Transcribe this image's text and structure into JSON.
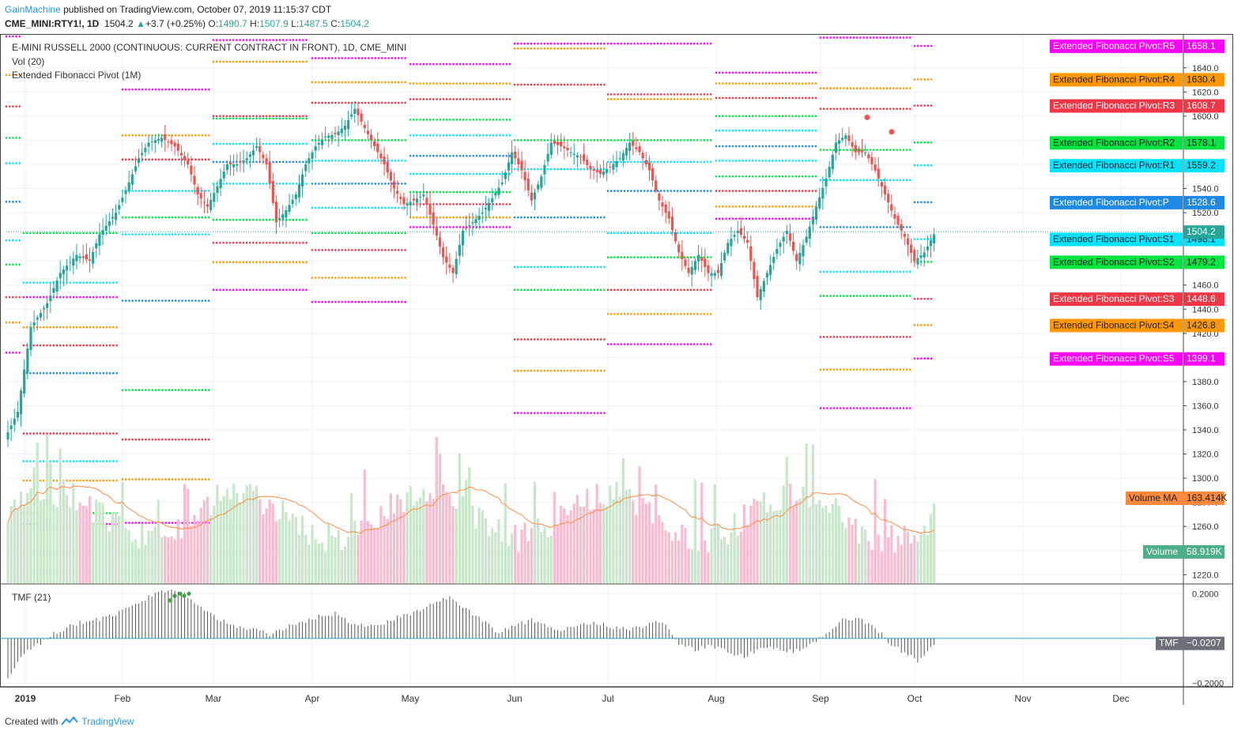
{
  "header": {
    "author": "GainMachine",
    "published": "published on TradingView.com, October 07, 2019 11:15:37 CDT",
    "symbol": "CME_MINI:RTY1!, 1D",
    "last": "1504.2",
    "change": "+3.7 (+0.25%)",
    "o_label": "O:",
    "o_val": "1490.7",
    "h_label": "H:",
    "h_val": "1507.9",
    "l_label": "L:",
    "l_val": "1487.5",
    "c_label": "C:",
    "c_val": "1504.2"
  },
  "legend": {
    "title": "E-MINI RUSSELL 2000 (CONTINUOUS: CURRENT CONTRACT IN FRONT), 1D, CME_MINI",
    "vol": "Vol (20)",
    "pivot": "Extended Fibonacci Pivot (1M)",
    "tmf": "TMF (21)"
  },
  "footer": {
    "created": "Created with",
    "brand": "TradingView"
  },
  "colors": {
    "up": "#26a69a",
    "down": "#ef5350",
    "R5": "#ff00ff",
    "R4": "#ff9800",
    "R3": "#f23645",
    "R2": "#00e640",
    "R1": "#00e5ff",
    "P": "#1e88e5",
    "S1": "#00e5ff",
    "S2": "#00e640",
    "S3": "#f23645",
    "S4": "#ff9800",
    "S5": "#ff00ff",
    "vol_up": "#c8e6c9",
    "vol_down": "#f8bbd0",
    "vol_ma": "#ff8a3d"
  },
  "chart_data": [
    {
      "type": "candlestick",
      "title": "E-MINI RUSSELL 2000 (CONTINUOUS: CURRENT CONTRACT IN FRONT), 1D, CME_MINI",
      "x_ticks": [
        "2019",
        "Feb",
        "Mar",
        "Apr",
        "May",
        "Jun",
        "Jul",
        "Aug",
        "Sep",
        "Oct",
        "Nov",
        "Dec"
      ],
      "y_ticks": [
        "1640.0",
        "1620.0",
        "1600.0",
        "1580.0",
        "1560.0",
        "1540.0",
        "1520.0",
        "1500.0",
        "1480.0",
        "1460.0",
        "1440.0",
        "1420.0",
        "1400.0",
        "1380.0",
        "1360.0",
        "1340.0",
        "1320.0",
        "1300.0",
        "1280.0",
        "1260.0",
        "1240.0",
        "1220.0"
      ],
      "ylim": [
        1213,
        1668
      ],
      "last_price": 1504.2,
      "close_path": [
        [
          0,
          1338
        ],
        [
          3,
          1355
        ],
        [
          7,
          1425
        ],
        [
          12,
          1445
        ],
        [
          16,
          1470
        ],
        [
          21,
          1485
        ],
        [
          25,
          1480
        ],
        [
          28,
          1502
        ],
        [
          33,
          1520
        ],
        [
          37,
          1545
        ],
        [
          40,
          1565
        ],
        [
          43,
          1578
        ],
        [
          47,
          1582
        ],
        [
          51,
          1575
        ],
        [
          55,
          1560
        ],
        [
          58,
          1535
        ],
        [
          61,
          1525
        ],
        [
          64,
          1542
        ],
        [
          67,
          1560
        ],
        [
          70,
          1560
        ],
        [
          73,
          1565
        ],
        [
          76,
          1575
        ],
        [
          79,
          1560
        ],
        [
          82,
          1512
        ],
        [
          85,
          1522
        ],
        [
          88,
          1535
        ],
        [
          91,
          1560
        ],
        [
          94,
          1575
        ],
        [
          97,
          1583
        ],
        [
          100,
          1585
        ],
        [
          103,
          1592
        ],
        [
          106,
          1606
        ],
        [
          109,
          1590
        ],
        [
          112,
          1575
        ],
        [
          115,
          1560
        ],
        [
          118,
          1540
        ],
        [
          121,
          1527
        ],
        [
          124,
          1530
        ],
        [
          127,
          1535
        ],
        [
          130,
          1510
        ],
        [
          133,
          1483
        ],
        [
          136,
          1470
        ],
        [
          139,
          1505
        ],
        [
          142,
          1512
        ],
        [
          145,
          1520
        ],
        [
          148,
          1532
        ],
        [
          151,
          1545
        ],
        [
          154,
          1570
        ],
        [
          157,
          1555
        ],
        [
          160,
          1530
        ],
        [
          163,
          1550
        ],
        [
          166,
          1578
        ],
        [
          169,
          1575
        ],
        [
          172,
          1570
        ],
        [
          175,
          1566
        ],
        [
          178,
          1556
        ],
        [
          181,
          1552
        ],
        [
          184,
          1558
        ],
        [
          187,
          1565
        ],
        [
          190,
          1578
        ],
        [
          193,
          1570
        ],
        [
          196,
          1555
        ],
        [
          199,
          1530
        ],
        [
          202,
          1515
        ],
        [
          205,
          1487
        ],
        [
          208,
          1470
        ],
        [
          211,
          1485
        ],
        [
          214,
          1470
        ],
        [
          217,
          1470
        ],
        [
          220,
          1495
        ],
        [
          223,
          1505
        ],
        [
          226,
          1495
        ],
        [
          229,
          1450
        ],
        [
          232,
          1470
        ],
        [
          235,
          1490
        ],
        [
          238,
          1505
        ],
        [
          241,
          1480
        ],
        [
          244,
          1500
        ],
        [
          247,
          1525
        ],
        [
          250,
          1548
        ],
        [
          253,
          1578
        ],
        [
          256,
          1584
        ],
        [
          259,
          1570
        ],
        [
          262,
          1570
        ],
        [
          265,
          1555
        ],
        [
          268,
          1535
        ],
        [
          271,
          1515
        ],
        [
          274,
          1500
        ],
        [
          277,
          1480
        ],
        [
          280,
          1487
        ],
        [
          283,
          1502
        ]
      ],
      "pivot_levels": [
        {
          "name": "R5",
          "label": "Extended Fibonacci Pivot:R5",
          "value": 1658.1
        },
        {
          "name": "R4",
          "label": "Extended Fibonacci Pivot:R4",
          "value": 1630.4
        },
        {
          "name": "R3",
          "label": "Extended Fibonacci Pivot:R3",
          "value": 1608.7
        },
        {
          "name": "R2",
          "label": "Extended Fibonacci Pivot:R2",
          "value": 1578.1
        },
        {
          "name": "R1",
          "label": "Extended Fibonacci Pivot:R1",
          "value": 1559.2
        },
        {
          "name": "P",
          "label": "Extended Fibonacci Pivot:P",
          "value": 1528.6
        },
        {
          "name": "S1",
          "label": "Extended Fibonacci Pivot:S1",
          "value": 1498.1
        },
        {
          "name": "S2",
          "label": "Extended Fibonacci Pivot:S2",
          "value": 1479.2
        },
        {
          "name": "S3",
          "label": "Extended Fibonacci Pivot:S3",
          "value": 1448.6
        },
        {
          "name": "S4",
          "label": "Extended Fibonacci Pivot:S4",
          "value": 1426.8
        },
        {
          "name": "S5",
          "label": "Extended Fibonacci Pivot:S5",
          "value": 1399.1
        }
      ],
      "monthly_pivots": [
        {
          "month": "Dec 2018",
          "R5": 1666,
          "R4": 1634,
          "R3": 1608,
          "R2": 1582,
          "R1": 1561,
          "P": 1529,
          "S1": 1497,
          "S2": 1477,
          "S3": 1450,
          "S4": 1429,
          "S5": 1404
        },
        {
          "month": "Jan",
          "R5": 1450,
          "R4": 1425,
          "R3": 1410,
          "R2": 1503,
          "R1": 1462,
          "P": 1387,
          "S1": 1314,
          "S2": 1271,
          "S3": 1337,
          "S4": 1298,
          "S5": 1262
        },
        {
          "month": "Feb",
          "R5": 1622,
          "R4": 1584,
          "R3": 1564,
          "R2": 1516,
          "R1": 1538,
          "P": 1447,
          "S1": 1502,
          "S2": 1373,
          "S3": 1332,
          "S4": 1299,
          "S5": 1263
        },
        {
          "month": "Mar",
          "R5": 1663,
          "R4": 1645,
          "R3": 1600,
          "R2": 1598,
          "R1": 1577,
          "P": 1562,
          "S1": 1544,
          "S2": 1514,
          "S3": 1495,
          "S4": 1479,
          "S5": 1456
        },
        {
          "month": "Apr",
          "R5": 1648,
          "R4": 1628,
          "R3": 1611,
          "R2": 1580,
          "R1": 1563,
          "P": 1544,
          "S1": 1524,
          "S2": 1503,
          "S3": 1489,
          "S4": 1466,
          "S5": 1446
        },
        {
          "month": "May",
          "R5": 1643,
          "R4": 1627,
          "R3": 1614,
          "R2": 1597,
          "R1": 1584,
          "P": 1567,
          "S1": 1552,
          "S2": 1537,
          "S3": 1527,
          "S4": 1516,
          "S5": 1508
        },
        {
          "month": "Jun",
          "R5": 1660,
          "R4": 1656,
          "R3": 1626,
          "R2": 1580,
          "R1": 1556,
          "P": 1516,
          "S1": 1475,
          "S2": 1456,
          "S3": 1415,
          "S4": 1389,
          "S5": 1354
        },
        {
          "month": "Jul",
          "R5": 1660,
          "R4": 1614,
          "R3": 1618,
          "R2": 1580,
          "R1": 1562,
          "P": 1538,
          "S1": 1503,
          "S2": 1483,
          "S3": 1456,
          "S4": 1436,
          "S5": 1411
        },
        {
          "month": "Aug",
          "R5": 1636,
          "R4": 1627,
          "R3": 1615,
          "R2": 1600,
          "R1": 1588,
          "P": 1575,
          "S1": 1563,
          "S2": 1550,
          "S3": 1538,
          "S4": 1525,
          "S5": 1515
        },
        {
          "month": "Sep",
          "R5": 1665,
          "R4": 1623,
          "R3": 1606,
          "R2": 1572,
          "R1": 1547,
          "P": 1508,
          "S1": 1471,
          "S2": 1451,
          "S3": 1417,
          "S4": 1390,
          "S5": 1358
        },
        {
          "month": "Oct",
          "R5": 1658.1,
          "R4": 1630.4,
          "R3": 1608.7,
          "R2": 1578.1,
          "R1": 1559.2,
          "P": 1528.6,
          "S1": 1498.1,
          "S2": 1479.2,
          "S3": 1448.6,
          "S4": 1426.8,
          "S5": 1399.1
        }
      ]
    },
    {
      "type": "bar",
      "title": "Vol (20)",
      "series": [
        {
          "name": "Volume MA",
          "last": "163.414K"
        },
        {
          "name": "Volume",
          "last": "58.919K"
        }
      ]
    },
    {
      "type": "bar",
      "title": "TMF (21)",
      "y_ticks": [
        "0.2000",
        "−0.2000"
      ],
      "ylim": [
        -0.22,
        0.24
      ],
      "last": "−0.0207",
      "last_label": "TMF",
      "path": [
        [
          0,
          -0.17
        ],
        [
          5,
          -0.07
        ],
        [
          10,
          -0.02
        ],
        [
          15,
          0.03
        ],
        [
          20,
          0.06
        ],
        [
          25,
          0.08
        ],
        [
          30,
          0.09
        ],
        [
          35,
          0.12
        ],
        [
          40,
          0.16
        ],
        [
          45,
          0.2
        ],
        [
          50,
          0.22
        ],
        [
          53,
          0.21
        ],
        [
          56,
          0.18
        ],
        [
          60,
          0.13
        ],
        [
          65,
          0.08
        ],
        [
          70,
          0.05
        ],
        [
          75,
          0.04
        ],
        [
          80,
          0.02
        ],
        [
          85,
          0.05
        ],
        [
          90,
          0.07
        ],
        [
          95,
          0.1
        ],
        [
          100,
          0.11
        ],
        [
          105,
          0.07
        ],
        [
          110,
          0.05
        ],
        [
          115,
          0.07
        ],
        [
          120,
          0.1
        ],
        [
          125,
          0.12
        ],
        [
          130,
          0.16
        ],
        [
          135,
          0.18
        ],
        [
          140,
          0.13
        ],
        [
          145,
          0.08
        ],
        [
          150,
          0.02
        ],
        [
          155,
          0.06
        ],
        [
          160,
          0.08
        ],
        [
          165,
          0.05
        ],
        [
          170,
          0.04
        ],
        [
          175,
          0.06
        ],
        [
          180,
          0.07
        ],
        [
          185,
          0.05
        ],
        [
          190,
          0.04
        ],
        [
          195,
          0.06
        ],
        [
          200,
          0.08
        ],
        [
          205,
          -0.02
        ],
        [
          210,
          -0.05
        ],
        [
          215,
          -0.03
        ],
        [
          220,
          -0.06
        ],
        [
          225,
          -0.08
        ],
        [
          230,
          -0.05
        ],
        [
          235,
          -0.04
        ],
        [
          240,
          -0.06
        ],
        [
          245,
          -0.03
        ],
        [
          250,
          0.02
        ],
        [
          255,
          0.08
        ],
        [
          260,
          0.09
        ],
        [
          265,
          0.05
        ],
        [
          270,
          -0.03
        ],
        [
          275,
          -0.07
        ],
        [
          278,
          -0.1
        ],
        [
          283,
          -0.02
        ]
      ]
    }
  ]
}
